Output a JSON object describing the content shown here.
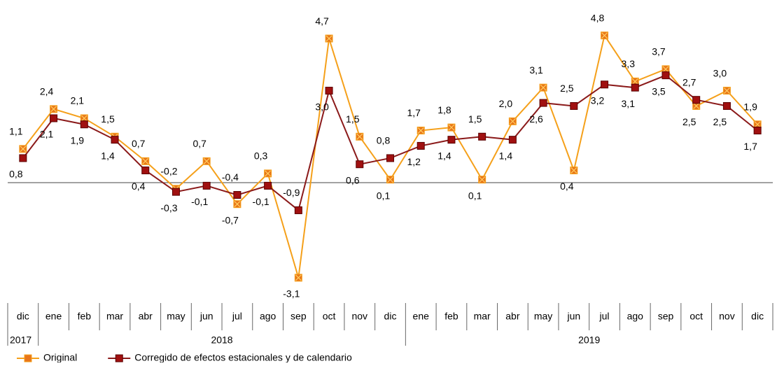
{
  "chart_data": {
    "type": "line",
    "categories": [
      "dic",
      "ene",
      "feb",
      "mar",
      "abr",
      "may",
      "jun",
      "jul",
      "ago",
      "sep",
      "oct",
      "nov",
      "dic",
      "ene",
      "feb",
      "mar",
      "abr",
      "may",
      "jun",
      "jul",
      "ago",
      "sep",
      "oct",
      "nov",
      "dic"
    ],
    "category_groups": [
      {
        "name": "2017",
        "count": 1
      },
      {
        "name": "2018",
        "count": 12
      },
      {
        "name": "2019",
        "count": 12
      }
    ],
    "series": [
      {
        "name": "Original",
        "color": "#f5a01a",
        "marker_color": "#e8751a",
        "values": [
          1.1,
          2.4,
          2.1,
          1.5,
          0.7,
          -0.2,
          0.7,
          -0.7,
          0.3,
          -3.1,
          4.7,
          1.5,
          0.1,
          1.7,
          1.8,
          0.1,
          2.0,
          3.1,
          0.4,
          4.8,
          3.3,
          3.7,
          2.5,
          3.0,
          1.9
        ],
        "value_labels": [
          "1,1",
          "2,4",
          "2,1",
          "1,5",
          "0,7",
          "-0,2",
          "0,7",
          "-0,7",
          "0,3",
          "-3,1",
          "4,7",
          "1,5",
          "0,1",
          "1,7",
          "1,8",
          "0,1",
          "2,0",
          "3,1",
          "0,4",
          "4,8",
          "3,3",
          "3,7",
          "2,5",
          "3,0",
          "1,9"
        ]
      },
      {
        "name": "Corregido de efectos estacionales y de calendario",
        "color": "#8b1a1a",
        "marker_color": "#a01010",
        "values": [
          0.8,
          2.1,
          1.9,
          1.4,
          0.4,
          -0.3,
          -0.1,
          -0.4,
          -0.1,
          -0.9,
          3.0,
          0.6,
          0.8,
          1.2,
          1.4,
          1.5,
          1.4,
          2.6,
          2.5,
          3.2,
          3.1,
          3.5,
          2.7,
          2.5,
          1.7
        ],
        "value_labels": [
          "0,8",
          "2,1",
          "1,9",
          "1,4",
          "0,4",
          "-0,3",
          "-0,1",
          "-0,4",
          "-0,1",
          "-0,9",
          "3,0",
          "0,6",
          "0,8",
          "1,2",
          "1,4",
          "1,5",
          "1,4",
          "2,6",
          "2,5",
          "3,2",
          "3,1",
          "3,5",
          "2,7",
          "2,5",
          "1,7"
        ]
      }
    ],
    "ylim": [
      -3.4,
      5.5
    ]
  }
}
